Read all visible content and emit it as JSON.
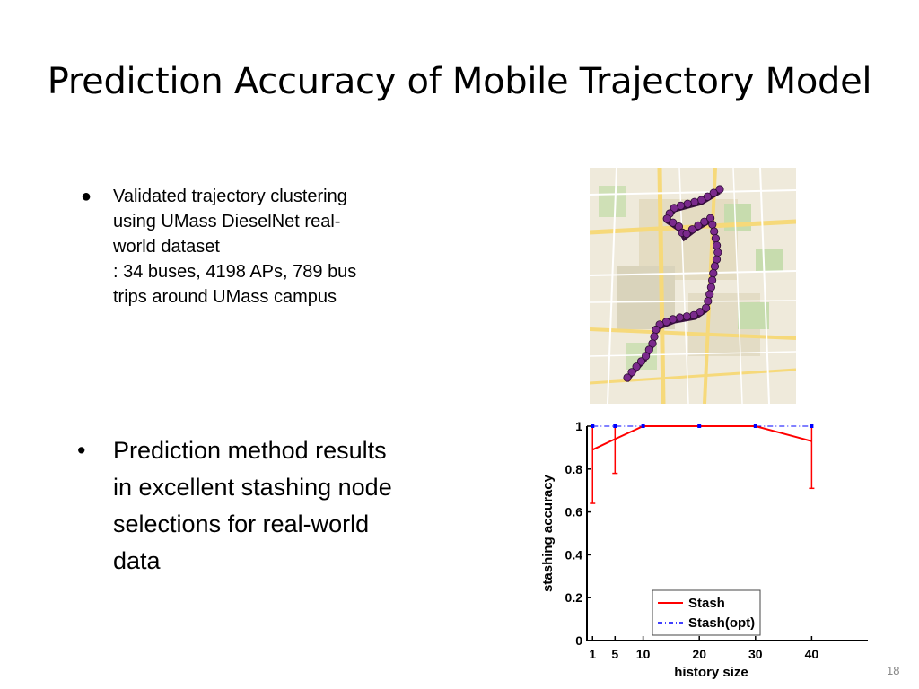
{
  "title": "Prediction Accuracy of Mobile Trajectory Model",
  "bullets": [
    {
      "marker": "●",
      "lines": [
        "Validated trajectory clustering",
        "using UMass DieselNet real-",
        "world dataset",
        ": 34 buses, 4198 APs, 789 bus",
        "trips around UMass campus"
      ]
    },
    {
      "marker": "•",
      "lines": [
        "Prediction method results",
        "in excellent stashing node",
        "selections for real-world",
        "data"
      ]
    }
  ],
  "slide_number": "18",
  "map": {
    "icon": "map-icon",
    "accent": "#7a2a8c"
  },
  "chart_data": {
    "type": "line",
    "xlabel": "history size",
    "ylabel": "stashing accuracy",
    "xticks": [
      1,
      5,
      10,
      20,
      30,
      40
    ],
    "yticks": [
      "0",
      "0.2",
      "0.4",
      "0.6",
      "0.8",
      "1"
    ],
    "xlim": [
      0,
      50
    ],
    "ylim": [
      0,
      1
    ],
    "legend_position": "bottom-right",
    "series": [
      {
        "name": "Stash",
        "color": "#ff0000",
        "style": "solid",
        "x": [
          1,
          5,
          10,
          20,
          30,
          40
        ],
        "y": [
          0.89,
          0.94,
          1.0,
          1.0,
          1.0,
          0.93
        ],
        "err_low": [
          0.64,
          0.78,
          1.0,
          1.0,
          1.0,
          0.71
        ],
        "err_high": [
          1.0,
          1.0,
          1.0,
          1.0,
          1.0,
          1.0
        ]
      },
      {
        "name": "Stash(opt)",
        "color": "#0000ff",
        "style": "dashdot",
        "x": [
          1,
          5,
          10,
          20,
          30,
          40
        ],
        "y": [
          1.0,
          1.0,
          1.0,
          1.0,
          1.0,
          1.0
        ]
      }
    ]
  }
}
